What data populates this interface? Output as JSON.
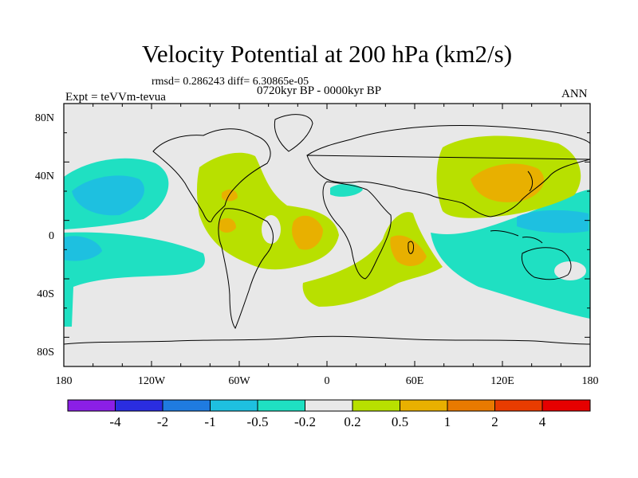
{
  "title": "Velocity Potential at 200 hPa (km2/s)",
  "stats": "rmsd= 0.286243 diff= 6.30865e-05",
  "left_label": "Expt = teVVm-tevua",
  "center_label": "0720kyr BP - 0000kyr BP",
  "right_label": "ANN",
  "x_tick_labels": [
    "180",
    "120W",
    "60W",
    "0",
    "60E",
    "120E",
    "180"
  ],
  "y_tick_labels": [
    "80N",
    "40N",
    "0",
    "40S",
    "80S"
  ],
  "colorbar": {
    "labels": [
      "-4",
      "-2",
      "-1",
      "-0.5",
      "-0.2",
      "0.2",
      "0.5",
      "1",
      "2",
      "4"
    ],
    "colors": [
      "#8b1fe6",
      "#2a2de0",
      "#1f7be0",
      "#1ec0e0",
      "#1fe0c2",
      "#e8e8e8",
      "#b8e000",
      "#e8b000",
      "#e87a00",
      "#e83c00",
      "#e60000"
    ]
  },
  "map": {
    "background_color": "#e8e8e8",
    "shaded_colors": {
      "neg_0.5": "#1ec0e0",
      "neg_0.2": "#1fe0c2",
      "pos_0.2": "#b8e000",
      "pos_0.5": "#e8b000"
    }
  }
}
